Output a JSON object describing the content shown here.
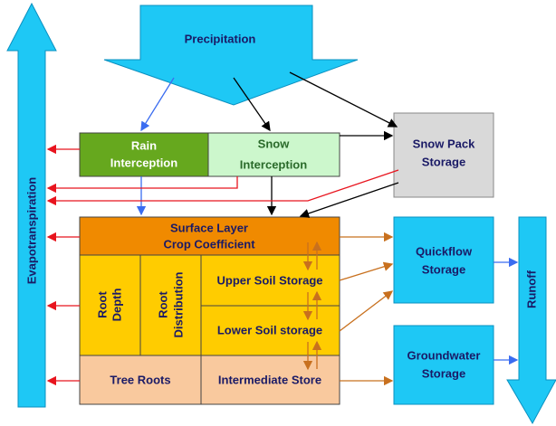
{
  "nodes": {
    "precipitation": [
      "Precipitation"
    ],
    "evapotranspiration": [
      "Evapotranspiration"
    ],
    "rain_interception": [
      "Rain",
      "Interception"
    ],
    "snow_interception": [
      "Snow",
      "Interception"
    ],
    "snow_pack": [
      "Snow Pack",
      "Storage"
    ],
    "surface_layer": [
      "Surface Layer",
      "Crop Coefficient"
    ],
    "root_depth": [
      "Root",
      "Depth"
    ],
    "root_distribution": [
      "Root",
      "Distribution"
    ],
    "upper_soil": [
      "Upper Soil Storage"
    ],
    "lower_soil": [
      "Lower Soil storage"
    ],
    "tree_roots": [
      "Tree Roots"
    ],
    "intermediate_store": [
      "Intermediate Store"
    ],
    "quickflow": [
      "Quickflow",
      "Storage"
    ],
    "groundwater": [
      "Groundwater",
      "Storage"
    ],
    "runoff": [
      "Runoff"
    ]
  }
}
